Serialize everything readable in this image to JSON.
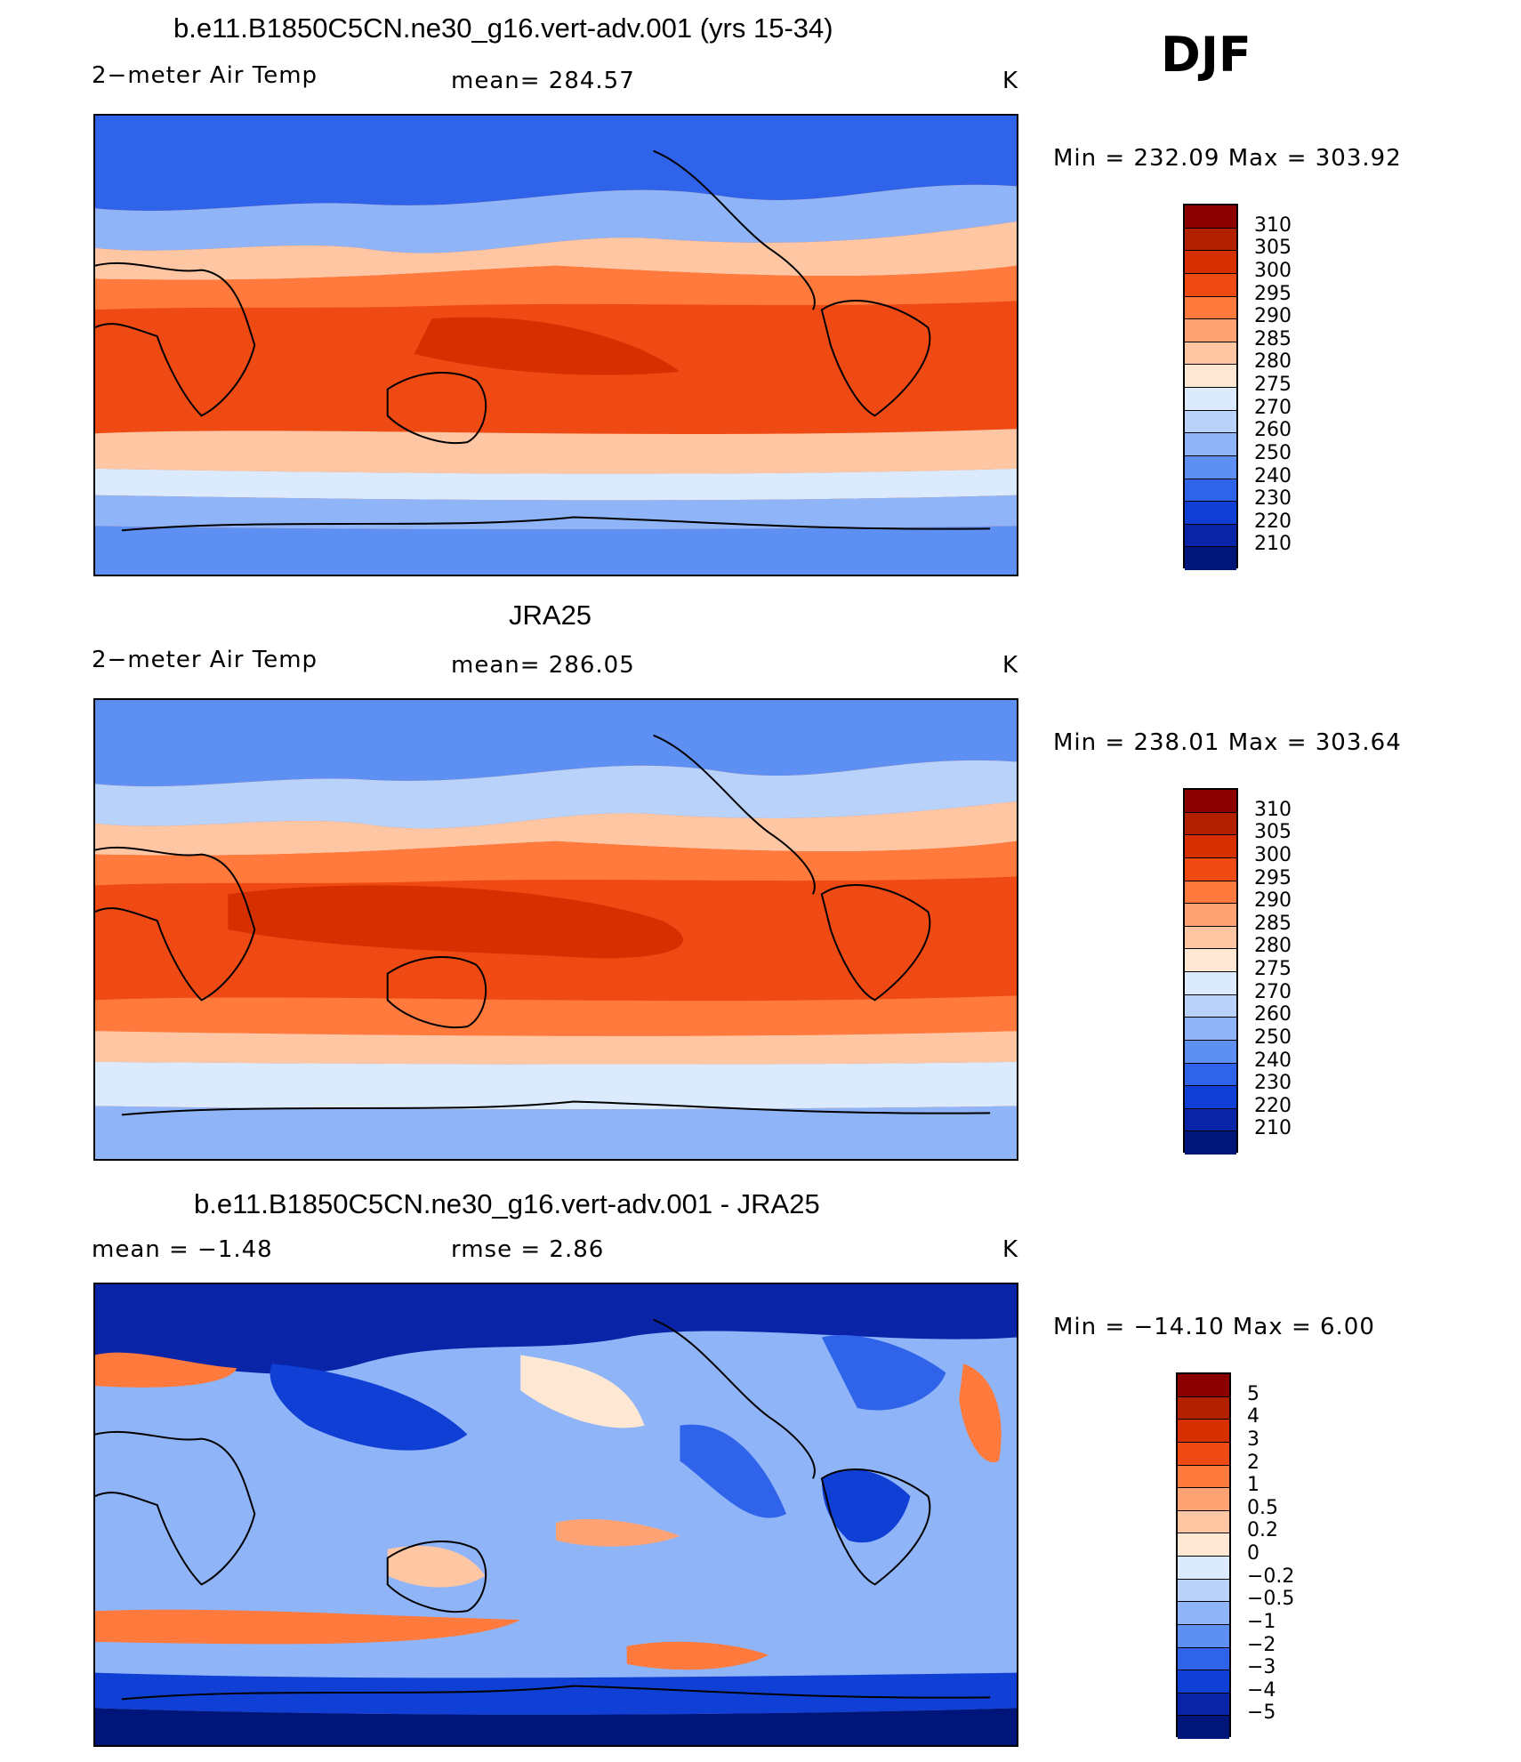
{
  "season": "DJF",
  "panels": [
    {
      "title": "b.e11.B1850C5CN.ne30_g16.vert-adv.001 (yrs 15-34)",
      "left_label": "2−meter Air Temp",
      "center_label": "mean=  284.57",
      "units": "K",
      "minmax": "Min  =  232.09  Max  =  303.92",
      "colorbar_labels": [
        "310",
        "305",
        "300",
        "295",
        "290",
        "285",
        "280",
        "275",
        "270",
        "260",
        "250",
        "240",
        "230",
        "220",
        "210"
      ]
    },
    {
      "title": "JRA25",
      "left_label": "2−meter Air Temp",
      "center_label": "mean=  286.05",
      "units": "K",
      "minmax": "Min  =  238.01  Max  =  303.64",
      "colorbar_labels": [
        "310",
        "305",
        "300",
        "295",
        "290",
        "285",
        "280",
        "275",
        "270",
        "260",
        "250",
        "240",
        "230",
        "220",
        "210"
      ]
    },
    {
      "title": "b.e11.B1850C5CN.ne30_g16.vert-adv.001 - JRA25",
      "left_label": "mean  =    −1.48",
      "center_label": "rmse  =     2.86",
      "units": "K",
      "minmax": "Min  =  −14.10  Max  =     6.00",
      "colorbar_labels": [
        "5",
        "4",
        "3",
        "2",
        "1",
        "0.5",
        "0.2",
        "0",
        "−0.2",
        "−0.5",
        "−1",
        "−2",
        "−3",
        "−4",
        "−5"
      ]
    }
  ],
  "colors": {
    "abs_scale": [
      "#8b0000",
      "#b22000",
      "#d63000",
      "#f04a14",
      "#ff7a3c",
      "#ffa375",
      "#ffc6a3",
      "#ffe8d3",
      "#dbeafc",
      "#b9d2fa",
      "#8fb4f8",
      "#5e90f4",
      "#2f63ea",
      "#0f3fd4",
      "#0a24a8",
      "#00157a"
    ],
    "diff_scale": [
      "#8b0000",
      "#b22000",
      "#d63000",
      "#f04a14",
      "#ff7a3c",
      "#ffa375",
      "#ffc6a3",
      "#ffe8d3",
      "#dbeafc",
      "#b9d2fa",
      "#8fb4f8",
      "#5e90f4",
      "#2f63ea",
      "#0f3fd4",
      "#0a24a8",
      "#00157a"
    ]
  }
}
